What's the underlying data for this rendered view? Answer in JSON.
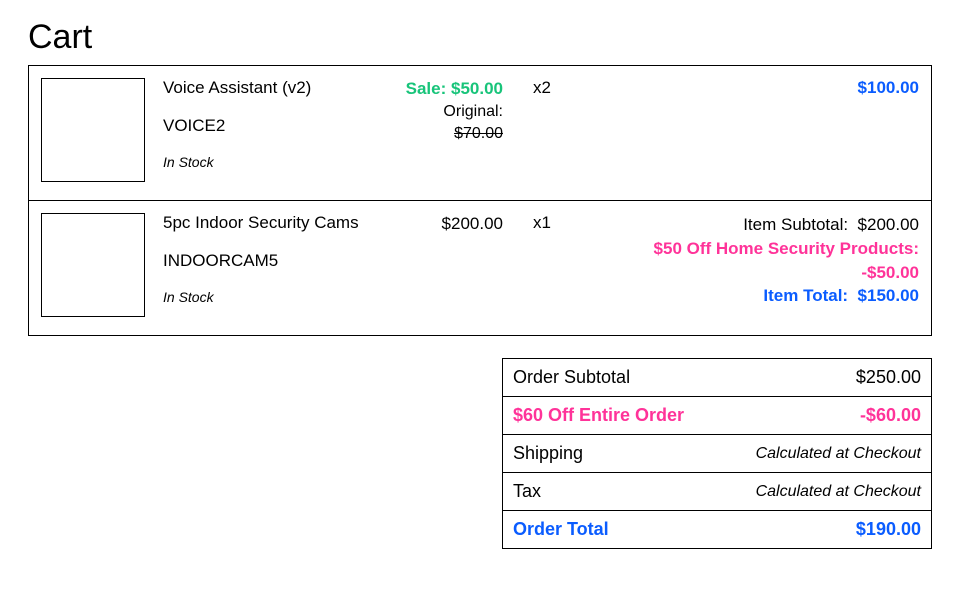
{
  "title": "Cart",
  "colors": {
    "sale_green": "#18c47a",
    "link_blue": "#0a5cff",
    "discount_pink": "#ff3399",
    "border": "#000000",
    "background": "#ffffff"
  },
  "items": [
    {
      "name": "Voice Assistant (v2)",
      "sku": "VOICE2",
      "stock": "In Stock",
      "sale_label": "Sale: ",
      "sale_price": "$50.00",
      "original_label": "Original: ",
      "original_price": "$70.00",
      "qty": "x2",
      "line_total": "$100.00"
    },
    {
      "name": "5pc Indoor Security Cams",
      "sku": "INDOORCAM5",
      "stock": "In Stock",
      "price": "$200.00",
      "qty": "x1",
      "subtotal_label": "Item Subtotal:",
      "subtotal_value": "$200.00",
      "discount_label": "$50 Off Home Security Products:",
      "discount_value": "-$50.00",
      "item_total_label": "Item Total:",
      "item_total_value": "$150.00"
    }
  ],
  "summary": {
    "subtotal_label": "Order Subtotal",
    "subtotal_value": "$250.00",
    "order_discount_label": "$60 Off Entire Order",
    "order_discount_value": "-$60.00",
    "shipping_label": "Shipping",
    "shipping_value": "Calculated at Checkout",
    "tax_label": "Tax",
    "tax_value": "Calculated at Checkout",
    "total_label": "Order Total",
    "total_value": "$190.00"
  }
}
